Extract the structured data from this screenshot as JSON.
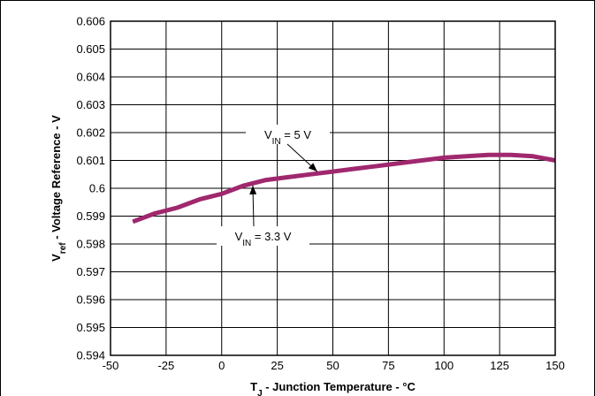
{
  "chart_data": {
    "type": "line",
    "title": "",
    "xlabel": {
      "main": "T",
      "sub": "J",
      "rest": " - Junction Temperature - °C"
    },
    "ylabel": {
      "main": "V",
      "sub": "ref",
      "rest": " - Voltage Reference - V"
    },
    "xlim": [
      -50,
      150
    ],
    "ylim": [
      0.594,
      0.606
    ],
    "xticks": [
      -50,
      -25,
      0,
      25,
      50,
      75,
      100,
      125,
      150
    ],
    "yticks": [
      0.594,
      0.595,
      0.596,
      0.597,
      0.598,
      0.599,
      0.6,
      0.601,
      0.602,
      0.603,
      0.604,
      0.605,
      0.606
    ],
    "xtick_labels": [
      "-50",
      "-25",
      "0",
      "25",
      "50",
      "75",
      "100",
      "125",
      "150"
    ],
    "ytick_labels": [
      "0.594",
      "0.595",
      "0.596",
      "0.597",
      "0.598",
      "0.599",
      "0.6",
      "0.601",
      "0.602",
      "0.603",
      "0.604",
      "0.605",
      "0.606"
    ],
    "grid": true,
    "line_color": "#a0286e",
    "series": [
      {
        "x": [
          -40,
          -30,
          -20,
          -10,
          0,
          10,
          20,
          30,
          40,
          50,
          60,
          70,
          80,
          90,
          100,
          110,
          120,
          130,
          140,
          150
        ],
        "y": [
          0.5988,
          0.5991,
          0.5993,
          0.5996,
          0.5998,
          0.6001,
          0.6003,
          0.6004,
          0.6005,
          0.6006,
          0.6007,
          0.6008,
          0.6009,
          0.601,
          0.6011,
          0.60115,
          0.6012,
          0.6012,
          0.60115,
          0.601
        ]
      },
      {
        "x": [
          -40,
          -30,
          -20,
          -10,
          0,
          10,
          20,
          30,
          40,
          50,
          60,
          70,
          80,
          90,
          100,
          110,
          120,
          130,
          140,
          150
        ],
        "y": [
          0.5988,
          0.5991,
          0.5993,
          0.5996,
          0.5998,
          0.6001,
          0.6003,
          0.6004,
          0.6005,
          0.6006,
          0.6007,
          0.6008,
          0.6009,
          0.601,
          0.6011,
          0.60115,
          0.6012,
          0.6012,
          0.60115,
          0.601
        ]
      }
    ],
    "annotations": [
      {
        "main": "V",
        "sub": "IN",
        "rest": " = 5 V",
        "target": [
          43,
          0.6006
        ]
      },
      {
        "main": "V",
        "sub": "IN",
        "rest": " = 3.3 V",
        "target": [
          14,
          0.6001
        ]
      }
    ]
  }
}
